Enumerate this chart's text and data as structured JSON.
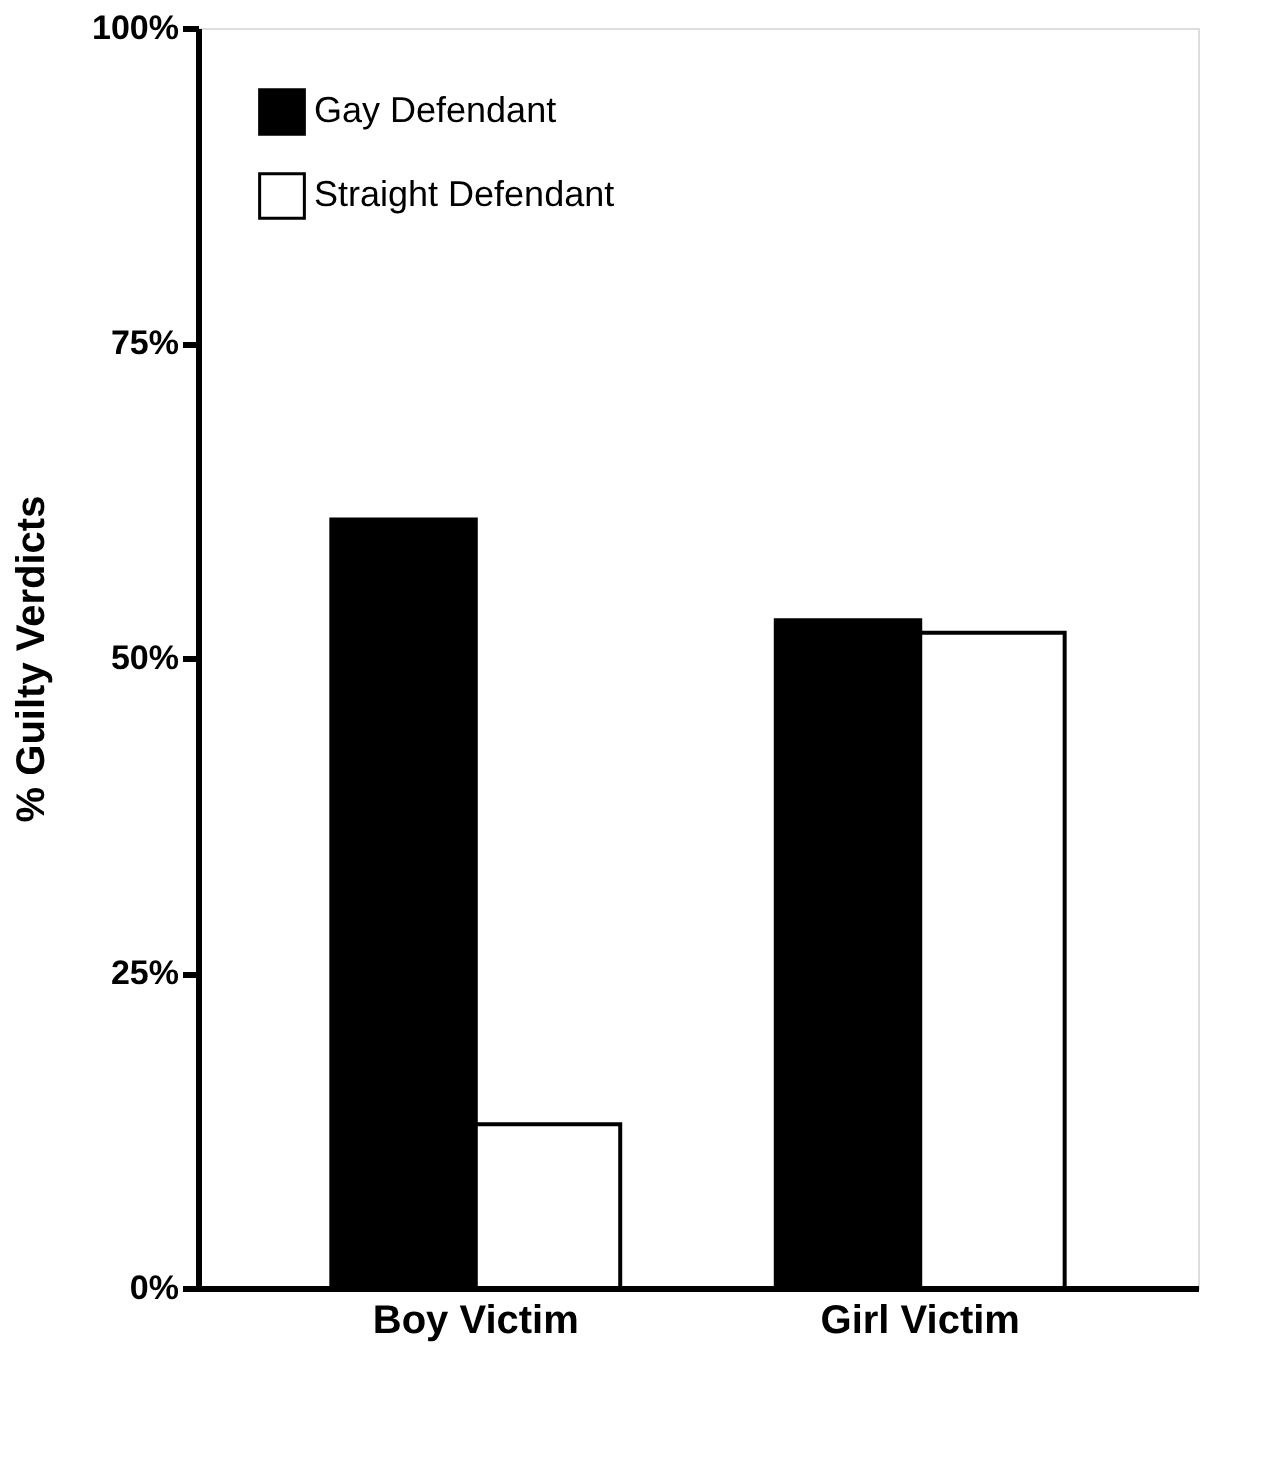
{
  "chart_data": {
    "type": "bar",
    "ylabel": "% Guilty Verdicts",
    "categories": [
      "Boy Victim",
      "Girl Victim"
    ],
    "series": [
      {
        "name": "Gay Defendant",
        "color": "#000000",
        "values": [
          61,
          53
        ]
      },
      {
        "name": "Straight Defendant",
        "color": "#ffffff",
        "values": [
          13,
          52
        ]
      }
    ],
    "ylim": [
      0,
      100
    ],
    "yticks": [
      {
        "value": 0,
        "label": "0%"
      },
      {
        "value": 25,
        "label": "25%"
      },
      {
        "value": 50,
        "label": "50%"
      },
      {
        "value": 75,
        "label": "75%"
      },
      {
        "value": 100,
        "label": "100%"
      }
    ],
    "grid": false,
    "legend": "top left"
  }
}
